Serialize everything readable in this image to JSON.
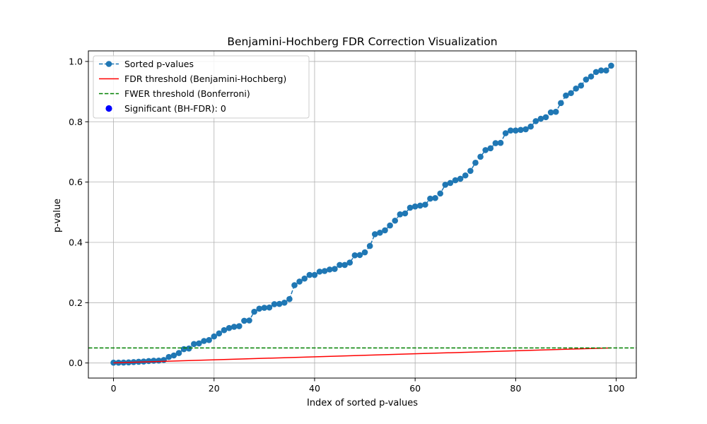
{
  "chart_data": {
    "type": "line",
    "title": "Benjamini-Hochberg FDR Correction Visualization",
    "xlabel": "Index of sorted p-values",
    "ylabel": "p-value",
    "xlim": [
      -5,
      104
    ],
    "ylim": [
      -0.05,
      1.035
    ],
    "xticks": [
      0,
      20,
      40,
      60,
      80,
      100
    ],
    "xtick_labels": [
      "0",
      "20",
      "40",
      "60",
      "80",
      "100"
    ],
    "yticks": [
      0.0,
      0.2,
      0.4,
      0.6,
      0.8,
      1.0
    ],
    "ytick_labels": [
      "0.0",
      "0.2",
      "0.4",
      "0.6",
      "0.8",
      "1.0"
    ],
    "grid": true,
    "legend_position": "top-left",
    "series": [
      {
        "name": "Sorted p-values",
        "style": "dashed line with circle markers",
        "color": "#1f77b4",
        "x_start": 0,
        "values": [
          0.001,
          0.0012,
          0.0015,
          0.002,
          0.003,
          0.004,
          0.005,
          0.0065,
          0.0075,
          0.008,
          0.01,
          0.02,
          0.025,
          0.033,
          0.046,
          0.048,
          0.063,
          0.065,
          0.073,
          0.076,
          0.088,
          0.098,
          0.109,
          0.116,
          0.12,
          0.122,
          0.14,
          0.141,
          0.17,
          0.18,
          0.183,
          0.184,
          0.195,
          0.196,
          0.2,
          0.212,
          0.258,
          0.27,
          0.28,
          0.292,
          0.292,
          0.303,
          0.305,
          0.31,
          0.312,
          0.325,
          0.325,
          0.333,
          0.357,
          0.358,
          0.367,
          0.388,
          0.427,
          0.432,
          0.44,
          0.456,
          0.472,
          0.493,
          0.496,
          0.515,
          0.519,
          0.522,
          0.525,
          0.545,
          0.547,
          0.562,
          0.591,
          0.597,
          0.606,
          0.611,
          0.622,
          0.637,
          0.664,
          0.684,
          0.706,
          0.712,
          0.729,
          0.73,
          0.762,
          0.771,
          0.771,
          0.773,
          0.775,
          0.784,
          0.802,
          0.81,
          0.815,
          0.831,
          0.833,
          0.862,
          0.887,
          0.895,
          0.91,
          0.92,
          0.94,
          0.95,
          0.965,
          0.97,
          0.97,
          0.986
        ]
      },
      {
        "name": "FDR threshold (Benjamini-Hochberg)",
        "style": "solid line",
        "color": "#ff0000",
        "x": [
          0,
          99
        ],
        "values": [
          0.0005,
          0.05
        ]
      },
      {
        "name": "FWER threshold (Bonferroni)",
        "style": "dashed line",
        "color": "#008000",
        "value": 0.05
      },
      {
        "name": "Significant (BH-FDR): 0",
        "style": "scatter",
        "color": "#0000ff",
        "values": []
      }
    ]
  }
}
